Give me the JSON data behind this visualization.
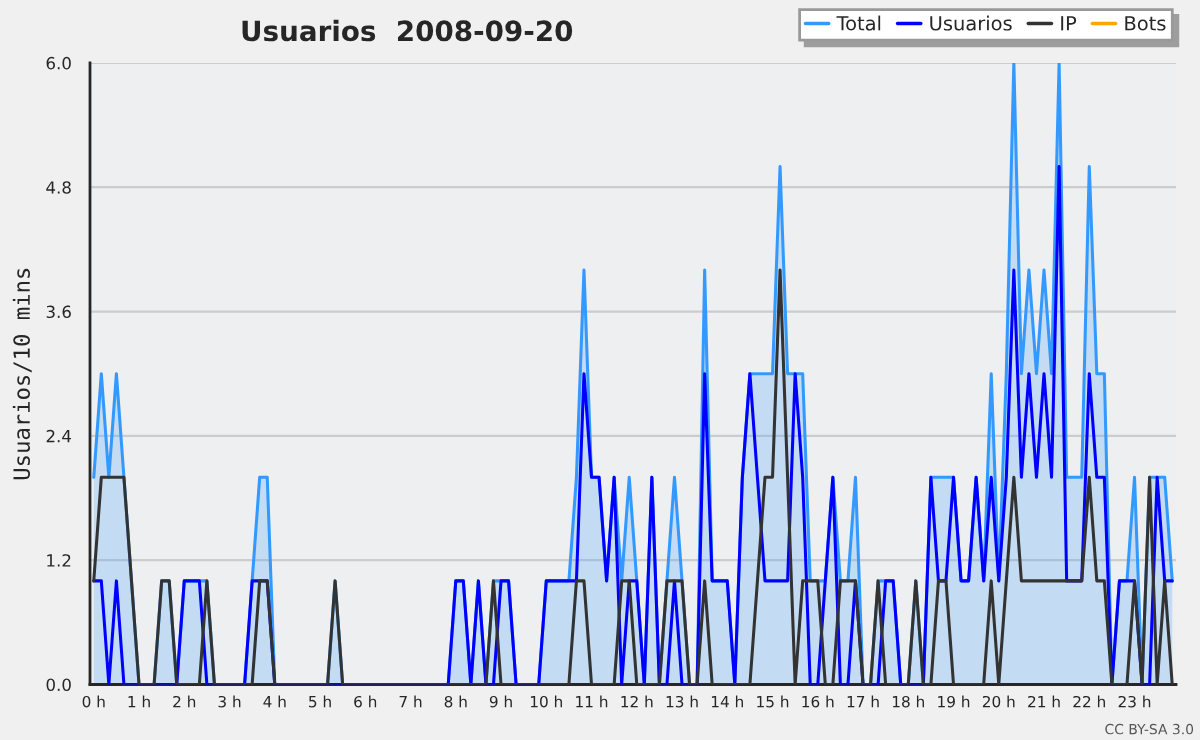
{
  "chart_data": {
    "type": "line",
    "title": "Usuarios  2008-09-20",
    "ylabel": "Usuarios/10 mins",
    "categories": [
      "0 h",
      null,
      null,
      null,
      null,
      null,
      "1 h",
      null,
      null,
      null,
      null,
      null,
      "2 h",
      null,
      null,
      null,
      null,
      null,
      "3 h",
      null,
      null,
      null,
      null,
      null,
      "4 h",
      null,
      null,
      null,
      null,
      null,
      "5 h",
      null,
      null,
      null,
      null,
      null,
      "6 h",
      null,
      null,
      null,
      null,
      null,
      "7 h",
      null,
      null,
      null,
      null,
      null,
      "8 h",
      null,
      null,
      null,
      null,
      null,
      "9 h",
      null,
      null,
      null,
      null,
      null,
      "10 h",
      null,
      null,
      null,
      null,
      null,
      "11 h",
      null,
      null,
      null,
      null,
      null,
      "12 h",
      null,
      null,
      null,
      null,
      null,
      "13 h",
      null,
      null,
      null,
      null,
      null,
      "14 h",
      null,
      null,
      null,
      null,
      null,
      "15 h",
      null,
      null,
      null,
      null,
      null,
      "16 h",
      null,
      null,
      null,
      null,
      null,
      "17 h",
      null,
      null,
      null,
      null,
      null,
      "18 h",
      null,
      null,
      null,
      null,
      null,
      "19 h",
      null,
      null,
      null,
      null,
      null,
      "20 h",
      null,
      null,
      null,
      null,
      null,
      "21 h",
      null,
      null,
      null,
      null,
      null,
      "22 h",
      null,
      null,
      null,
      null,
      null,
      "23 h",
      null,
      null,
      null,
      null,
      null
    ],
    "series": [
      {
        "name": "Total",
        "type": "area",
        "color": "#3399ff",
        "values": [
          2,
          3,
          2,
          3,
          2,
          1,
          0,
          0,
          0,
          1,
          1,
          0,
          1,
          1,
          1,
          1,
          0,
          0,
          0,
          0,
          0,
          1,
          2,
          2,
          0,
          0,
          0,
          0,
          0,
          0,
          0,
          0,
          1,
          0,
          0,
          0,
          0,
          0,
          0,
          0,
          0,
          0,
          0,
          0,
          0,
          0,
          0,
          0,
          1,
          1,
          0,
          1,
          0,
          1,
          1,
          1,
          0,
          0,
          0,
          0,
          1,
          1,
          1,
          1,
          2,
          4,
          2,
          2,
          1,
          2,
          1,
          2,
          1,
          0,
          2,
          0,
          1,
          2,
          1,
          0,
          0,
          4,
          1,
          1,
          1,
          0,
          2,
          3,
          3,
          3,
          3,
          5,
          3,
          3,
          3,
          1,
          1,
          1,
          2,
          1,
          1,
          2,
          0,
          0,
          1,
          1,
          1,
          0,
          0,
          1,
          0,
          2,
          2,
          2,
          2,
          1,
          1,
          2,
          1,
          3,
          1,
          3,
          6,
          3,
          4,
          3,
          4,
          3,
          6,
          2,
          2,
          2,
          5,
          3,
          3,
          0,
          1,
          1,
          2,
          0,
          2,
          2,
          2,
          1
        ]
      },
      {
        "name": "Usuarios",
        "type": "line",
        "color": "#0000ff",
        "values": [
          1,
          1,
          0,
          1,
          0,
          0,
          0,
          0,
          0,
          0,
          0,
          0,
          1,
          1,
          1,
          0,
          0,
          0,
          0,
          0,
          0,
          1,
          1,
          1,
          0,
          0,
          0,
          0,
          0,
          0,
          0,
          0,
          0,
          0,
          0,
          0,
          0,
          0,
          0,
          0,
          0,
          0,
          0,
          0,
          0,
          0,
          0,
          0,
          1,
          1,
          0,
          1,
          0,
          0,
          1,
          1,
          0,
          0,
          0,
          0,
          1,
          1,
          1,
          1,
          1,
          3,
          2,
          2,
          1,
          2,
          0,
          1,
          1,
          0,
          2,
          0,
          0,
          1,
          0,
          0,
          0,
          3,
          1,
          1,
          1,
          0,
          2,
          3,
          2,
          1,
          1,
          1,
          1,
          3,
          2,
          0,
          0,
          1,
          2,
          0,
          0,
          1,
          0,
          0,
          0,
          1,
          1,
          0,
          0,
          0,
          0,
          2,
          1,
          1,
          2,
          1,
          1,
          2,
          1,
          2,
          1,
          2,
          4,
          2,
          3,
          2,
          3,
          2,
          5,
          1,
          1,
          1,
          3,
          2,
          2,
          0,
          1,
          1,
          1,
          0,
          0,
          2,
          1,
          1
        ]
      },
      {
        "name": "IP",
        "type": "line",
        "color": "#333333",
        "values": [
          1,
          2,
          2,
          2,
          2,
          1,
          0,
          0,
          0,
          1,
          1,
          0,
          0,
          0,
          0,
          1,
          0,
          0,
          0,
          0,
          0,
          0,
          1,
          1,
          0,
          0,
          0,
          0,
          0,
          0,
          0,
          0,
          1,
          0,
          0,
          0,
          0,
          0,
          0,
          0,
          0,
          0,
          0,
          0,
          0,
          0,
          0,
          0,
          0,
          0,
          0,
          0,
          0,
          1,
          0,
          0,
          0,
          0,
          0,
          0,
          0,
          0,
          0,
          0,
          1,
          1,
          0,
          0,
          0,
          0,
          1,
          1,
          0,
          0,
          0,
          0,
          1,
          1,
          1,
          0,
          0,
          1,
          0,
          0,
          0,
          0,
          0,
          0,
          1,
          2,
          2,
          4,
          2,
          0,
          1,
          1,
          1,
          0,
          0,
          1,
          1,
          1,
          0,
          0,
          1,
          0,
          0,
          0,
          0,
          1,
          0,
          0,
          1,
          1,
          0,
          0,
          0,
          0,
          0,
          1,
          0,
          1,
          2,
          1,
          1,
          1,
          1,
          1,
          1,
          1,
          1,
          1,
          2,
          1,
          1,
          0,
          0,
          0,
          1,
          0,
          2,
          0,
          1,
          0
        ]
      },
      {
        "name": "Bots",
        "type": "line",
        "color": "#ffa500",
        "values": [
          null,
          null,
          null,
          null,
          null,
          null,
          null,
          null,
          null,
          null,
          null,
          null,
          null,
          null,
          null,
          null,
          null,
          null,
          null,
          null,
          null,
          null,
          null,
          null,
          null,
          null,
          null,
          null,
          null,
          null,
          null,
          null,
          null,
          null,
          null,
          null,
          null,
          null,
          null,
          null,
          null,
          null,
          null,
          null,
          null,
          null,
          null,
          null,
          null,
          null,
          null,
          null,
          null,
          null,
          null,
          null,
          null,
          null,
          null,
          null,
          null,
          null,
          null,
          null,
          null,
          null,
          null,
          null,
          null,
          null,
          null,
          null,
          null,
          null,
          null,
          null,
          null,
          null,
          null,
          null,
          null,
          null,
          null,
          null,
          null,
          null,
          null,
          null,
          null,
          null,
          null,
          null,
          null,
          null,
          null,
          null,
          null,
          null,
          null,
          null,
          null,
          null,
          null,
          null,
          null,
          null,
          null,
          null,
          null,
          null,
          null,
          null,
          null,
          null,
          null,
          null,
          null,
          null,
          null,
          null,
          null,
          null,
          null,
          null,
          null,
          null,
          null,
          null,
          null,
          null,
          null,
          null,
          null,
          null,
          null,
          null,
          null,
          null,
          null,
          null,
          null,
          null,
          null,
          null
        ]
      }
    ],
    "ylim": [
      0,
      6
    ],
    "yticks": [
      {
        "value": 0,
        "label": "0.0"
      },
      {
        "value": 1.2,
        "label": "1.2"
      },
      {
        "value": 2.4,
        "label": "2.4"
      },
      {
        "value": 3.6,
        "label": "3.6"
      },
      {
        "value": 4.8,
        "label": "4.8"
      },
      {
        "value": 6,
        "label": "6.0"
      }
    ],
    "grid": "y",
    "legend": "top right",
    "annotations": [
      "CC BY-SA 3.0"
    ]
  }
}
